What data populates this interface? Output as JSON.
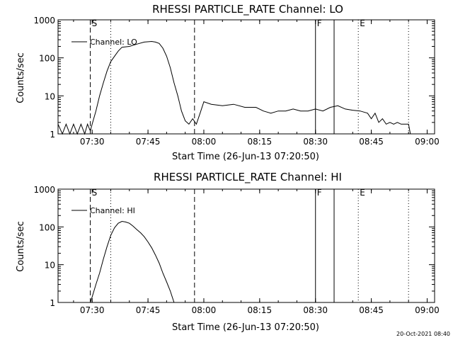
{
  "footer": {
    "timestamp": "20-Oct-2021 08:40"
  },
  "chart_data": [
    {
      "type": "line",
      "title": "RHESSI PARTICLE_RATE Channel: LO",
      "xlabel": "Start Time (26-Jun-13 07:20:50)",
      "ylabel": "Counts/sec",
      "yscale": "log",
      "ylim": [
        1,
        1000
      ],
      "xlim": [
        "07:20:50",
        "09:02:00"
      ],
      "x_ticks": [
        "07:30",
        "07:45",
        "08:00",
        "08:15",
        "08:30",
        "08:45",
        "09:00"
      ],
      "y_ticks": [
        "1",
        "10",
        "100",
        "1000"
      ],
      "legend": {
        "label": "Channel: LO",
        "placement": "top-left"
      },
      "markers": [
        {
          "label": "S",
          "time": "07:29:30",
          "style": "dashed",
          "show_label": true
        },
        {
          "label": "",
          "time": "07:35:00",
          "style": "dotted",
          "show_label": false
        },
        {
          "label": "",
          "time": "07:57:30",
          "style": "dashed",
          "show_label": false
        },
        {
          "label": "F",
          "time": "08:30:00",
          "style": "solid",
          "show_label": true
        },
        {
          "label": "",
          "time": "08:35:00",
          "style": "solid",
          "show_label": true
        },
        {
          "label": "E",
          "time": "08:41:30",
          "style": "dotted",
          "show_label": true
        },
        {
          "label": "",
          "time": "08:55:00",
          "style": "dotted",
          "show_label": false
        }
      ],
      "series": [
        {
          "name": "Channel: LO",
          "x": [
            "07:20:50",
            "07:22:00",
            "07:23:00",
            "07:24:00",
            "07:25:00",
            "07:26:00",
            "07:27:00",
            "07:28:00",
            "07:28:45",
            "07:29:30",
            "07:30:00",
            "07:31:00",
            "07:32:00",
            "07:33:00",
            "07:34:00",
            "07:35:00",
            "07:36:00",
            "07:37:00",
            "07:38:00",
            "07:40:00",
            "07:42:00",
            "07:44:00",
            "07:46:00",
            "07:47:00",
            "07:48:00",
            "07:49:00",
            "07:50:00",
            "07:51:00",
            "07:52:00",
            "07:53:00",
            "07:54:00",
            "07:55:00",
            "07:56:00",
            "07:57:00",
            "07:58:00",
            "07:59:00",
            "08:00:00",
            "08:02:00",
            "08:05:00",
            "08:08:00",
            "08:11:00",
            "08:14:00",
            "08:16:00",
            "08:18:00",
            "08:20:00",
            "08:22:00",
            "08:24:00",
            "08:26:00",
            "08:28:00",
            "08:30:00",
            "08:32:00",
            "08:34:00",
            "08:36:00",
            "08:38:00",
            "08:40:00",
            "08:42:00",
            "08:44:00",
            "08:45:00",
            "08:46:00",
            "08:47:00",
            "08:48:00",
            "08:49:00",
            "08:50:00",
            "08:51:00",
            "08:52:00",
            "08:53:00",
            "08:54:00",
            "08:55:00",
            "08:55:30"
          ],
          "y": [
            1.8,
            1.0,
            1.8,
            1.0,
            1.8,
            1.0,
            1.8,
            1.0,
            1.8,
            1.2,
            1.8,
            4,
            10,
            22,
            45,
            80,
            110,
            150,
            190,
            200,
            230,
            260,
            270,
            260,
            240,
            180,
            110,
            55,
            22,
            10,
            4,
            2.2,
            1.8,
            2.5,
            1.8,
            3.5,
            7,
            6,
            5.5,
            6,
            5,
            5,
            4,
            3.5,
            4,
            4,
            4.5,
            4,
            4,
            4.5,
            4,
            5,
            5.5,
            4.5,
            4.2,
            4,
            3.5,
            2.5,
            3.5,
            2,
            2.5,
            1.8,
            2,
            1.8,
            2,
            1.8,
            1.8,
            1.8,
            1.0
          ]
        }
      ]
    },
    {
      "type": "line",
      "title": "RHESSI PARTICLE_RATE Channel: HI",
      "xlabel": "Start Time (26-Jun-13 07:20:50)",
      "ylabel": "Counts/sec",
      "yscale": "log",
      "ylim": [
        1,
        1000
      ],
      "xlim": [
        "07:20:50",
        "09:02:00"
      ],
      "x_ticks": [
        "07:30",
        "07:45",
        "08:00",
        "08:15",
        "08:30",
        "08:45",
        "09:00"
      ],
      "y_ticks": [
        "1",
        "10",
        "100",
        "1000"
      ],
      "legend": {
        "label": "Channel: HI",
        "placement": "top-left"
      },
      "markers": [
        {
          "label": "S",
          "time": "07:29:30",
          "style": "dashed",
          "show_label": true
        },
        {
          "label": "",
          "time": "07:35:00",
          "style": "dotted",
          "show_label": false
        },
        {
          "label": "",
          "time": "07:57:30",
          "style": "dashed",
          "show_label": false
        },
        {
          "label": "F",
          "time": "08:30:00",
          "style": "solid",
          "show_label": true
        },
        {
          "label": "",
          "time": "08:35:00",
          "style": "solid",
          "show_label": true
        },
        {
          "label": "E",
          "time": "08:41:30",
          "style": "dotted",
          "show_label": true
        },
        {
          "label": "",
          "time": "08:55:00",
          "style": "dotted",
          "show_label": false
        }
      ],
      "series": [
        {
          "name": "Channel: HI",
          "x": [
            "07:29:30",
            "07:30:00",
            "07:31:00",
            "07:32:00",
            "07:33:00",
            "07:34:00",
            "07:35:00",
            "07:36:00",
            "07:37:00",
            "07:38:00",
            "07:39:00",
            "07:40:00",
            "07:41:00",
            "07:42:00",
            "07:43:00",
            "07:44:00",
            "07:45:00",
            "07:46:00",
            "07:47:00",
            "07:48:00",
            "07:49:00",
            "07:50:00",
            "07:51:00",
            "07:51:30",
            "07:52:00"
          ],
          "y": [
            1.0,
            1.4,
            3,
            6,
            14,
            30,
            60,
            95,
            125,
            140,
            135,
            125,
            105,
            85,
            70,
            55,
            40,
            28,
            18,
            11,
            6,
            3.5,
            2,
            1.4,
            1.0
          ]
        }
      ]
    }
  ]
}
